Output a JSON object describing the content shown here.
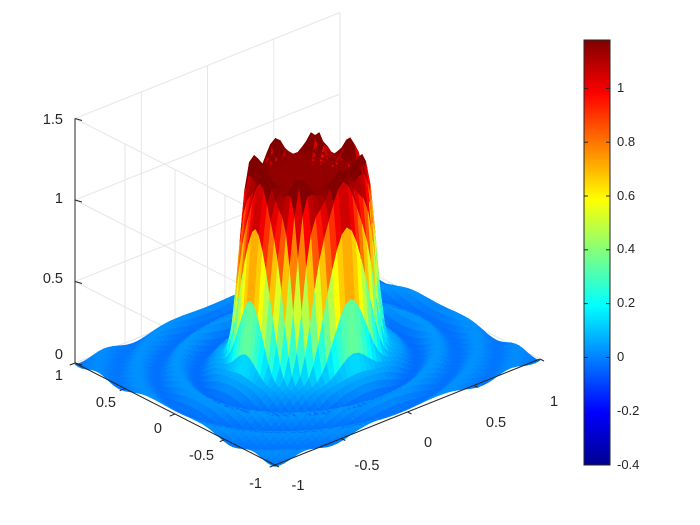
{
  "chart_data": {
    "type": "surface",
    "title": "",
    "xlabel": "",
    "ylabel": "",
    "zlabel": "",
    "x_range": [
      -1,
      1
    ],
    "y_range": [
      -1,
      1
    ],
    "z_range": [
      0,
      1.5
    ],
    "x_ticks": [
      "-1",
      "-0.5",
      "0",
      "0.5",
      "1"
    ],
    "y_ticks": [
      "-1",
      "-0.5",
      "0",
      "0.5",
      "1"
    ],
    "z_ticks": [
      "0",
      "0.5",
      "1",
      "1.5"
    ],
    "grid": true,
    "colormap": "jet",
    "colorbar": {
      "range": [
        -0.4,
        1.18
      ],
      "ticks": [
        "-0.4",
        "-0.2",
        "0",
        "0.2",
        "0.4",
        "0.6",
        "0.8",
        "1"
      ],
      "placement": "right"
    },
    "surface_description": {
      "plateau_height": 1.15,
      "plateau_radius": 0.42,
      "rim_peak_height": 1.32,
      "rim_peaks": 8,
      "base_level": 0.0,
      "ripple_amplitude": 0.04
    }
  }
}
